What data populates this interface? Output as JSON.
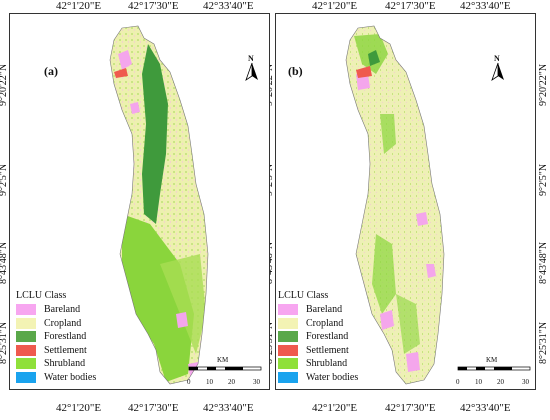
{
  "axis": {
    "top": [
      "42°1'20\"E",
      "42°17'30\"E",
      "42°33'40\"E"
    ],
    "bottom": [
      "42°1'20\"E",
      "42°17'30\"E",
      "42°33'40\"E"
    ],
    "left": [
      "9°20'22\"N",
      "9°2'5\"N",
      "8°43'48\"N",
      "8°25'31\"N"
    ],
    "right": [
      "9°20'22\"N",
      "9°2'5\"N",
      "8°43'48\"N",
      "8°25'31\"N"
    ]
  },
  "panels": [
    {
      "label": "(a)"
    },
    {
      "label": "(b)"
    }
  ],
  "north": "N",
  "legend": {
    "title": "LCLU Class",
    "items": [
      {
        "label": "Bareland",
        "color": "#f7a6f0"
      },
      {
        "label": "Cropland",
        "color": "#f3f3b4"
      },
      {
        "label": "Forestland",
        "color": "#5aa84a"
      },
      {
        "label": "Settlement",
        "color": "#ef5a4e"
      },
      {
        "label": "Shrubland",
        "color": "#8fe03a"
      },
      {
        "label": "Water bodies",
        "color": "#1aa3ee"
      }
    ]
  },
  "scale": {
    "unit": "KM",
    "ticks": [
      "0",
      "10",
      "20",
      "30"
    ]
  }
}
